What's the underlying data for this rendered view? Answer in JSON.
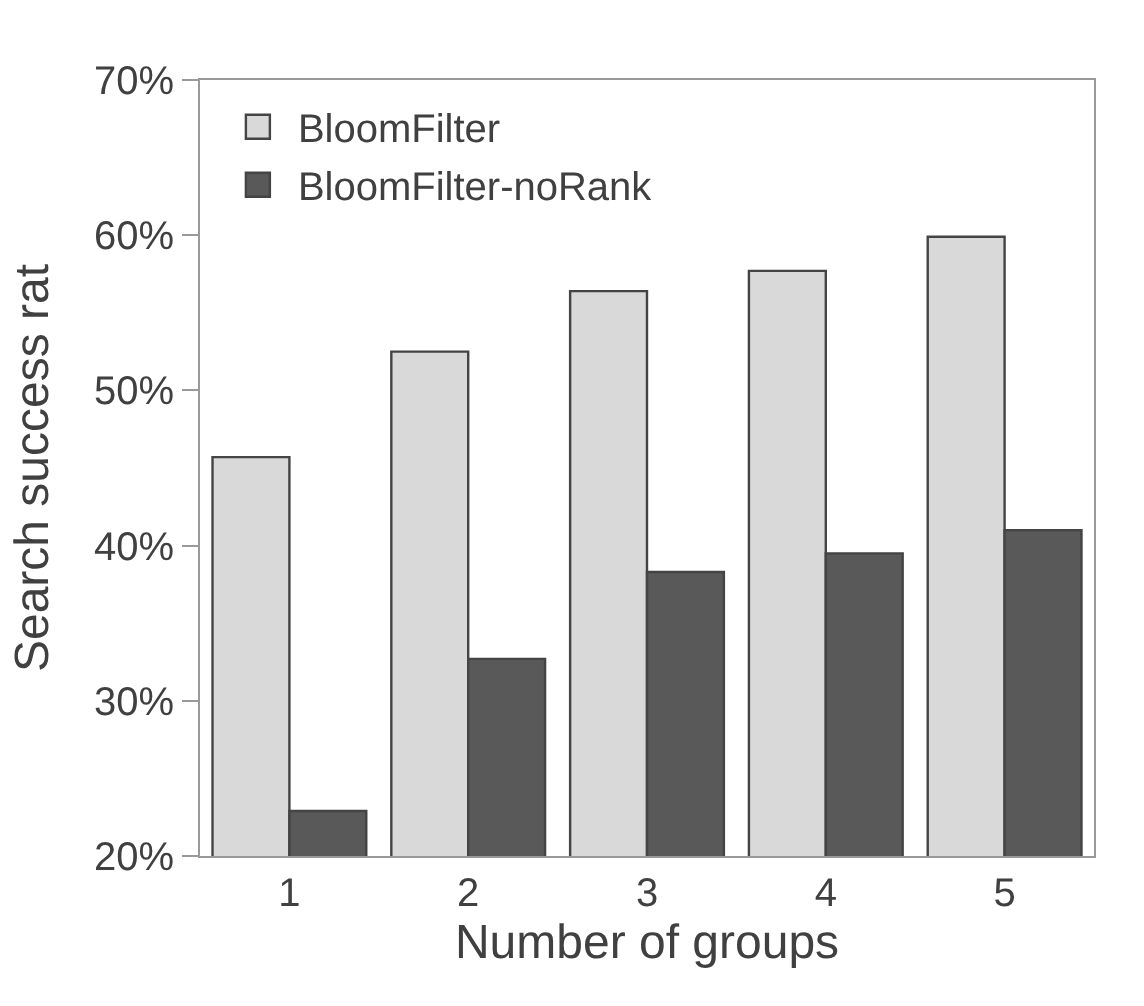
{
  "chart_data": {
    "type": "bar",
    "xlabel": "Number of groups",
    "ylabel": "Search success rat",
    "categories": [
      "1",
      "2",
      "3",
      "4",
      "5"
    ],
    "series": [
      {
        "name": "BloomFilter",
        "color": "#d9d9d9",
        "values": [
          45.7,
          52.5,
          56.4,
          57.7,
          59.9
        ]
      },
      {
        "name": "BloomFilter-noRank",
        "color": "#595959",
        "values": [
          22.9,
          32.7,
          38.3,
          39.5,
          41.0
        ]
      }
    ],
    "ylim": [
      20,
      70
    ],
    "yticks": [
      {
        "value": 20,
        "label": "20%"
      },
      {
        "value": 30,
        "label": "30%"
      },
      {
        "value": 40,
        "label": "40%"
      },
      {
        "value": 50,
        "label": "50%"
      },
      {
        "value": 60,
        "label": "60%"
      },
      {
        "value": 70,
        "label": "70%"
      }
    ],
    "grid": false,
    "legend": "top left"
  }
}
